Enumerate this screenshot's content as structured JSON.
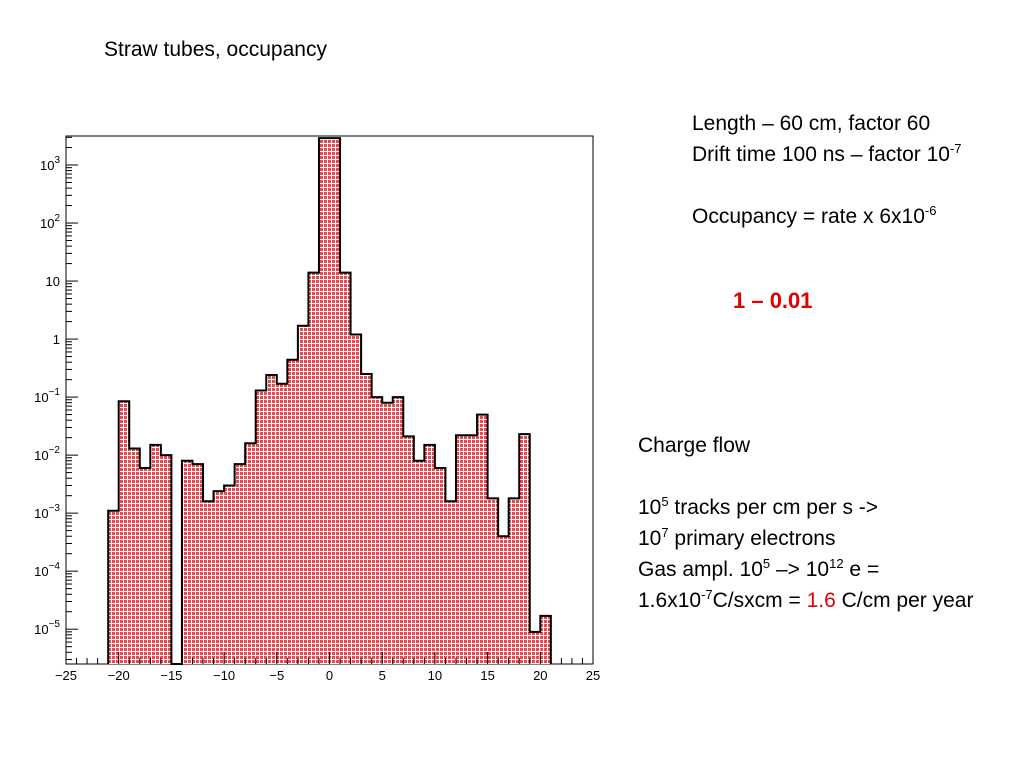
{
  "slide": {
    "title": "Straw tubes, occupancy",
    "length_line": "Length – 60 cm, factor 60",
    "drift_line_prefix": "Drift time 100 ns – factor 10",
    "drift_line_exp": "-7",
    "occupancy_prefix": "Occupancy = rate x 6x10",
    "occupancy_exp": "-6",
    "ratio": "1  –  0.01",
    "charge_flow": "Charge flow",
    "tracks_base": "10",
    "tracks_exp": "5",
    "tracks_text": " tracks per cm per s ->",
    "primary_base": "10",
    "primary_exp": "7",
    "primary_text": " primary electrons",
    "gas_prefix": "Gas ampl. 10",
    "gas_exp1": "5",
    "gas_mid": " –> 10",
    "gas_exp2": "12",
    "gas_suffix": " e =",
    "charge_prefix": "1.6x10",
    "charge_exp": "-7",
    "charge_mid": "C/sxcm = ",
    "charge_highlight": "1.6",
    "charge_suffix": " C/cm per year",
    "highlight_color": "#e00000"
  },
  "chart_data": {
    "type": "bar",
    "subtype": "histogram",
    "xlim": [
      -25,
      25
    ],
    "ylim_log10": [
      -5.6,
      3.5
    ],
    "yscale": "log",
    "bin_width": 1,
    "x_tick_labels": [
      "-25",
      "-20",
      "-15",
      "-10",
      "-5",
      "0",
      "5",
      "10",
      "15",
      "20",
      "25"
    ],
    "x_ticks": [
      -25,
      -20,
      -15,
      -10,
      -5,
      0,
      5,
      10,
      15,
      20,
      25
    ],
    "y_tick_labels": [
      {
        "base": "10",
        "exp": "3",
        "value": 1000
      },
      {
        "base": "10",
        "exp": "2",
        "value": 100
      },
      {
        "base": "10",
        "exp": "",
        "value": 10
      },
      {
        "base": "1",
        "exp": "",
        "value": 1
      },
      {
        "base": "10",
        "exp": "-1",
        "value": 0.1
      },
      {
        "base": "10",
        "exp": "-2",
        "value": 0.01
      },
      {
        "base": "10",
        "exp": "-3",
        "value": 0.001
      },
      {
        "base": "10",
        "exp": "-4",
        "value": 0.0001
      },
      {
        "base": "10",
        "exp": "-5",
        "value": 1e-05
      }
    ],
    "bins_left_edges": [
      -21,
      -20,
      -19,
      -18,
      -17,
      -16,
      -15,
      -14,
      -13,
      -12,
      -11,
      -10,
      -9,
      -8,
      -7,
      -6,
      -5,
      -4,
      -3,
      -2,
      -1,
      0,
      1,
      2,
      3,
      4,
      5,
      6,
      7,
      8,
      9,
      10,
      11,
      12,
      13,
      14,
      15,
      16,
      17,
      18,
      19,
      20
    ],
    "values": [
      0.0011,
      0.085,
      0.013,
      0.006,
      0.015,
      0.01,
      0.0,
      0.008,
      0.007,
      0.0016,
      0.0024,
      0.003,
      0.007,
      0.016,
      0.13,
      0.24,
      0.17,
      0.44,
      1.7,
      14,
      2900,
      2900,
      14,
      1.2,
      0.25,
      0.1,
      0.08,
      0.1,
      0.021,
      0.008,
      0.015,
      0.006,
      0.0016,
      0.022,
      0.022,
      0.05,
      0.0018,
      0.0004,
      0.0018,
      0.023,
      9e-06,
      1.7e-05
    ],
    "bar_fill": "#e84a4a",
    "bar_outline": "#000000",
    "grid": false,
    "legend": false
  }
}
